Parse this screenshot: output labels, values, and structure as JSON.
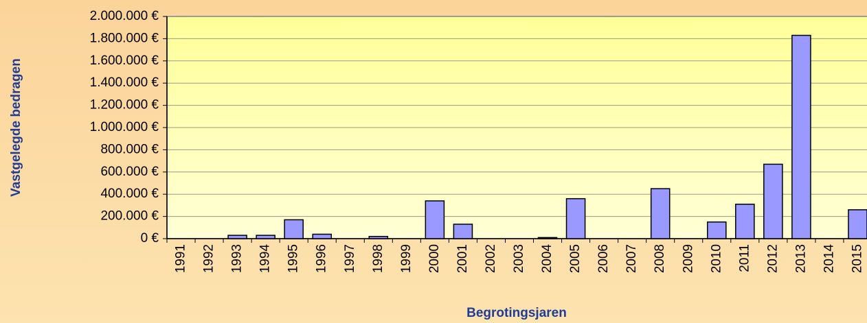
{
  "chart_data": {
    "type": "bar",
    "x_label": "Begrotingsjaren",
    "y_label": "Vastgelegde bedragen",
    "categories": [
      "1991",
      "1992",
      "1993",
      "1994",
      "1995",
      "1996",
      "1997",
      "1998",
      "1999",
      "2000",
      "2001",
      "2002",
      "2003",
      "2004",
      "2005",
      "2006",
      "2007",
      "2008",
      "2009",
      "2010",
      "2011",
      "2012",
      "2013",
      "2014",
      "2015"
    ],
    "values": [
      0,
      0,
      30000,
      30000,
      170000,
      40000,
      0,
      20000,
      0,
      340000,
      130000,
      0,
      0,
      10000,
      360000,
      0,
      0,
      450000,
      0,
      150000,
      310000,
      670000,
      1830000,
      0,
      260000
    ],
    "color": "#9999ff",
    "ylim": [
      0,
      2000000
    ],
    "yticks": [
      {
        "value": 0,
        "label": "0 €"
      },
      {
        "value": 200000,
        "label": "200.000 €"
      },
      {
        "value": 400000,
        "label": "400.000 €"
      },
      {
        "value": 600000,
        "label": "600.000 €"
      },
      {
        "value": 800000,
        "label": "800.000 €"
      },
      {
        "value": 1000000,
        "label": "1.000.000 €"
      },
      {
        "value": 1200000,
        "label": "1.200.000 €"
      },
      {
        "value": 1400000,
        "label": "1.400.000 €"
      },
      {
        "value": 1600000,
        "label": "1.600.000 €"
      },
      {
        "value": 1800000,
        "label": "1.800.000 €"
      },
      {
        "value": 2000000,
        "label": "2.000.000 €"
      }
    ],
    "grid": true
  }
}
